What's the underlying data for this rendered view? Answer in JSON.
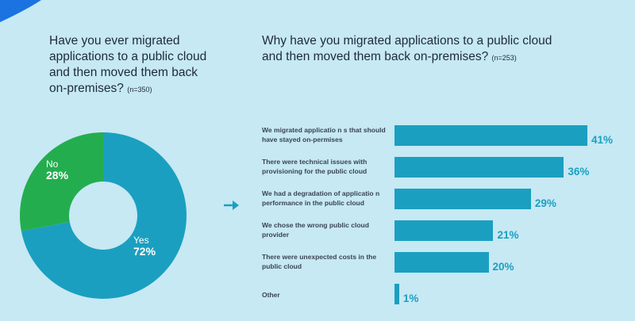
{
  "chart_data": [
    {
      "type": "pie",
      "title_lines": [
        "Have you ever migrated",
        "applications to a public cloud",
        "and then moved them back",
        "on-premises?"
      ],
      "sample_size": "(n=350)",
      "slices": [
        {
          "name": "Yes",
          "value": 72,
          "label": "72%",
          "color": "#1b9fc0"
        },
        {
          "name": "No",
          "value": 28,
          "label": "28%",
          "color": "#24ad4f"
        }
      ]
    },
    {
      "type": "bar",
      "orientation": "horizontal",
      "title_lines": [
        "Why have you migrated applications to a public cloud",
        "and then moved them back on-premises?"
      ],
      "sample_size": "(n=253)",
      "xlim": [
        0,
        100
      ],
      "categories": [
        [
          "We migrated applicatio n s that should",
          "have stayed on-permises"
        ],
        [
          "There were technical issues with",
          "provisioning for the public cloud"
        ],
        [
          "We had a degradation of applicatio n",
          "performance in the public cloud"
        ],
        [
          "We chose the wrong public cloud",
          "provider"
        ],
        [
          "There were unexpected costs in the",
          "public cloud"
        ],
        [
          "Other"
        ]
      ],
      "values": [
        41,
        36,
        29,
        21,
        20,
        1
      ],
      "value_labels": [
        "41%",
        "36%",
        "29%",
        "21%",
        "20%",
        "1%"
      ],
      "bar_color": "#1b9fc0"
    }
  ],
  "colors": {
    "background": "#c6e9f4",
    "accent": "#1b9fc0",
    "secondary": "#24ad4f",
    "corner": "#1a73e0"
  }
}
